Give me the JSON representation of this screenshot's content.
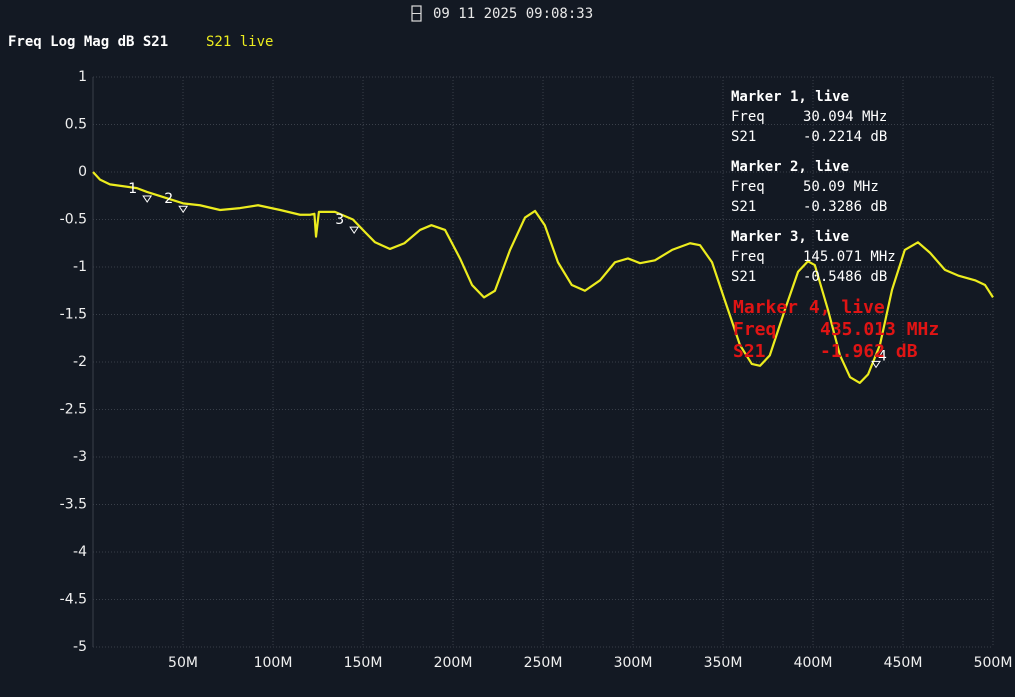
{
  "chart_data": {
    "type": "line",
    "timestamp": "09 11 2025 09:08:33",
    "title": "Freq Log Mag dB S21",
    "xlim": [
      0,
      500
    ],
    "ylim": [
      -5,
      1
    ],
    "xticks": [
      {
        "value": 50,
        "label": "50M"
      },
      {
        "value": 100,
        "label": "100M"
      },
      {
        "value": 150,
        "label": "150M"
      },
      {
        "value": 200,
        "label": "200M"
      },
      {
        "value": 250,
        "label": "250M"
      },
      {
        "value": 300,
        "label": "300M"
      },
      {
        "value": 350,
        "label": "350M"
      },
      {
        "value": 400,
        "label": "400M"
      },
      {
        "value": 450,
        "label": "450M"
      },
      {
        "value": 500,
        "label": "500M"
      }
    ],
    "yticks": [
      1,
      0.5,
      0,
      -0.5,
      -1,
      -1.5,
      -2,
      -2.5,
      -3,
      -3.5,
      -4,
      -4.5,
      -5
    ],
    "grid": true,
    "x": [
      0,
      3.9,
      9.4,
      24.4,
      30,
      50,
      59.4,
      70.6,
      81.7,
      91.7,
      104,
      115,
      120.6,
      123,
      123.9,
      125.5,
      134.4,
      144.4,
      151,
      156.7,
      165,
      173,
      181.7,
      188,
      195.6,
      203.9,
      210.6,
      217.2,
      223.3,
      231.7,
      240,
      245.6,
      251,
      258.3,
      266,
      273.3,
      281.7,
      290,
      297.2,
      303.9,
      312.2,
      321.7,
      331.7,
      337.2,
      343.9,
      351,
      359.4,
      366,
      370.6,
      376,
      384.4,
      391.7,
      397.2,
      401,
      408.3,
      415,
      420.6,
      426,
      430.6,
      437.2,
      443.9,
      451,
      458.3,
      465,
      473.3,
      480.6,
      490,
      495.6,
      500
    ],
    "series": [
      {
        "name": "S21 live",
        "color": "#ecec1e",
        "values": [
          0,
          -0.08,
          -0.13,
          -0.17,
          -0.21,
          -0.33,
          -0.35,
          -0.4,
          -0.38,
          -0.35,
          -0.4,
          -0.45,
          -0.45,
          -0.44,
          -0.68,
          -0.42,
          -0.42,
          -0.5,
          -0.63,
          -0.74,
          -0.81,
          -0.75,
          -0.61,
          -0.56,
          -0.61,
          -0.91,
          -1.19,
          -1.32,
          -1.25,
          -0.82,
          -0.48,
          -0.41,
          -0.56,
          -0.95,
          -1.19,
          -1.25,
          -1.14,
          -0.95,
          -0.91,
          -0.96,
          -0.93,
          -0.82,
          -0.75,
          -0.77,
          -0.95,
          -1.35,
          -1.82,
          -2.02,
          -2.04,
          -1.93,
          -1.45,
          -1.05,
          -0.94,
          -0.98,
          -1.45,
          -1.93,
          -2.16,
          -2.22,
          -2.13,
          -1.82,
          -1.24,
          -0.82,
          -0.74,
          -0.85,
          -1.03,
          -1.09,
          -1.14,
          -1.19,
          -1.32
        ]
      }
    ],
    "markers": [
      {
        "name": "1",
        "x": 30.094,
        "y": -0.2214,
        "heading": "Marker 1, live",
        "freq_label": "Freq",
        "freq": "30.094 MHz",
        "value_label": "S21",
        "value": "-0.2214 dB",
        "color": "#ffffff"
      },
      {
        "name": "2",
        "x": 50.09,
        "y": -0.3286,
        "heading": "Marker 2, live",
        "freq_label": "Freq",
        "freq": "50.09 MHz",
        "value_label": "S21",
        "value": "-0.3286 dB",
        "color": "#ffffff"
      },
      {
        "name": "3",
        "x": 145.071,
        "y": -0.5486,
        "heading": "Marker 3, live",
        "freq_label": "Freq",
        "freq": "145.071 MHz",
        "value_label": "S21",
        "value": "-0.5486 dB",
        "color": "#ffffff"
      },
      {
        "name": "4",
        "x": 435.013,
        "y": -1.962,
        "heading": "Marker 4, live",
        "freq_label": "Freq",
        "freq": "435.013 MHz",
        "value_label": "S21",
        "value": "-1.962 dB",
        "color": "#e01414"
      }
    ]
  }
}
